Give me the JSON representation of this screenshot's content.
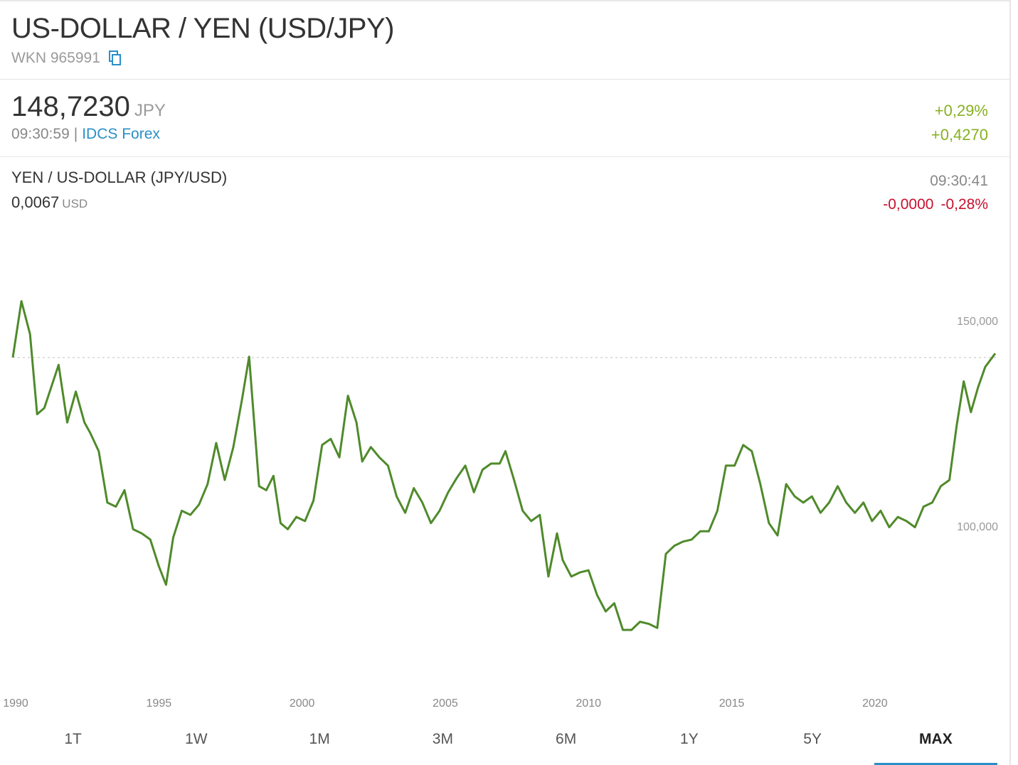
{
  "header": {
    "title": "US-DOLLAR / YEN (USD/JPY)",
    "wkn": "WKN 965991",
    "copy_icon": "copy-icon"
  },
  "quote": {
    "price": "148,7230",
    "currency": "JPY",
    "time": "09:30:59",
    "separator": "|",
    "source": "IDCS Forex",
    "change_pct": "+0,29%",
    "change_abs": "+0,4270",
    "positive_color": "#86b120"
  },
  "inverse": {
    "title": "YEN / US-DOLLAR (JPY/USD)",
    "value": "0,0067",
    "currency": "USD",
    "time": "09:30:41",
    "change_abs": "-0,0000",
    "change_pct": "-0,28%",
    "negative_color": "#c8102e"
  },
  "tabs": [
    {
      "label": "1T",
      "active": false
    },
    {
      "label": "1W",
      "active": false
    },
    {
      "label": "1M",
      "active": false
    },
    {
      "label": "3M",
      "active": false
    },
    {
      "label": "6M",
      "active": false
    },
    {
      "label": "1Y",
      "active": false
    },
    {
      "label": "5Y",
      "active": false
    },
    {
      "label": "MAX",
      "active": true
    }
  ],
  "chart_data": {
    "type": "line",
    "line_color": "#4f8a2b",
    "reference_line": 143.8,
    "xlim": [
      1989.9,
      2024.3
    ],
    "ylim": [
      72,
      158
    ],
    "x_ticks": [
      1990,
      1995,
      2000,
      2005,
      2010,
      2015,
      2020
    ],
    "y_ticks": [
      {
        "value": 150,
        "label": "150,000"
      },
      {
        "value": 100,
        "label": "100,000"
      }
    ],
    "series": [
      {
        "x": [
          1989.9,
          1990.2,
          1990.5,
          1990.75,
          1991.0,
          1991.5,
          1991.8,
          1992.1,
          1992.4,
          1992.6,
          1992.9,
          1993.2,
          1993.5,
          1993.8,
          1994.1,
          1994.4,
          1994.7,
          1995.0,
          1995.25,
          1995.5,
          1995.8,
          1996.1,
          1996.4,
          1996.7,
          1997.0,
          1997.3,
          1997.6,
          1997.9,
          1998.15,
          1998.5,
          1998.75,
          1999.0,
          1999.25,
          1999.5,
          1999.8,
          2000.1,
          2000.4,
          2000.7,
          2001.0,
          2001.3,
          2001.6,
          2001.9,
          2002.1,
          2002.4,
          2002.7,
          2003.0,
          2003.3,
          2003.6,
          2003.9,
          2004.2,
          2004.5,
          2004.8,
          2005.1,
          2005.4,
          2005.7,
          2006.0,
          2006.3,
          2006.6,
          2006.9,
          2007.1,
          2007.4,
          2007.7,
          2008.0,
          2008.3,
          2008.6,
          2008.9,
          2009.1,
          2009.4,
          2009.7,
          2010.0,
          2010.3,
          2010.6,
          2010.9,
          2011.2,
          2011.5,
          2011.8,
          2012.1,
          2012.4,
          2012.7,
          2013.0,
          2013.3,
          2013.6,
          2013.9,
          2014.2,
          2014.5,
          2014.8,
          2015.1,
          2015.4,
          2015.7,
          2016.0,
          2016.3,
          2016.6,
          2016.9,
          2017.2,
          2017.5,
          2017.8,
          2018.1,
          2018.4,
          2018.7,
          2019.0,
          2019.3,
          2019.6,
          2019.9,
          2020.2,
          2020.5,
          2020.8,
          2021.1,
          2021.4,
          2021.7,
          2022.0,
          2022.3,
          2022.6,
          2022.85,
          2023.1,
          2023.35,
          2023.6,
          2023.85,
          2024.2
        ],
        "values": [
          143.8,
          157.5,
          149.5,
          130.0,
          131.5,
          142.0,
          128.0,
          135.5,
          128.0,
          125.5,
          121.0,
          108.5,
          107.5,
          111.5,
          102.0,
          101.0,
          99.5,
          93.0,
          88.5,
          100.0,
          106.5,
          105.5,
          108.0,
          113.0,
          123.0,
          114.0,
          122.0,
          133.5,
          144.0,
          112.5,
          111.5,
          115.0,
          103.5,
          102.0,
          105.0,
          104.0,
          109.0,
          122.5,
          124.0,
          119.5,
          134.5,
          128.0,
          118.5,
          122.0,
          119.5,
          117.5,
          110.0,
          106.0,
          112.0,
          108.5,
          103.5,
          106.5,
          111.0,
          114.5,
          117.5,
          111.0,
          116.5,
          118.0,
          118.0,
          121.0,
          114.0,
          106.5,
          104.0,
          105.5,
          90.5,
          101.0,
          94.5,
          90.5,
          91.5,
          92.0,
          86.0,
          82.0,
          84.0,
          77.5,
          77.5,
          79.5,
          79.0,
          78.0,
          96.0,
          98.0,
          99.0,
          99.5,
          101.5,
          101.5,
          106.5,
          117.5,
          117.5,
          122.5,
          121.0,
          113.0,
          103.5,
          100.5,
          113.0,
          110.0,
          108.5,
          110.0,
          106.0,
          108.5,
          112.5,
          108.5,
          106.0,
          108.5,
          104.0,
          106.5,
          102.5,
          105.0,
          104.0,
          102.5,
          107.5,
          108.5,
          112.5,
          114.0,
          127.0,
          138.0,
          130.5,
          136.5,
          141.5,
          144.8
        ]
      }
    ]
  }
}
